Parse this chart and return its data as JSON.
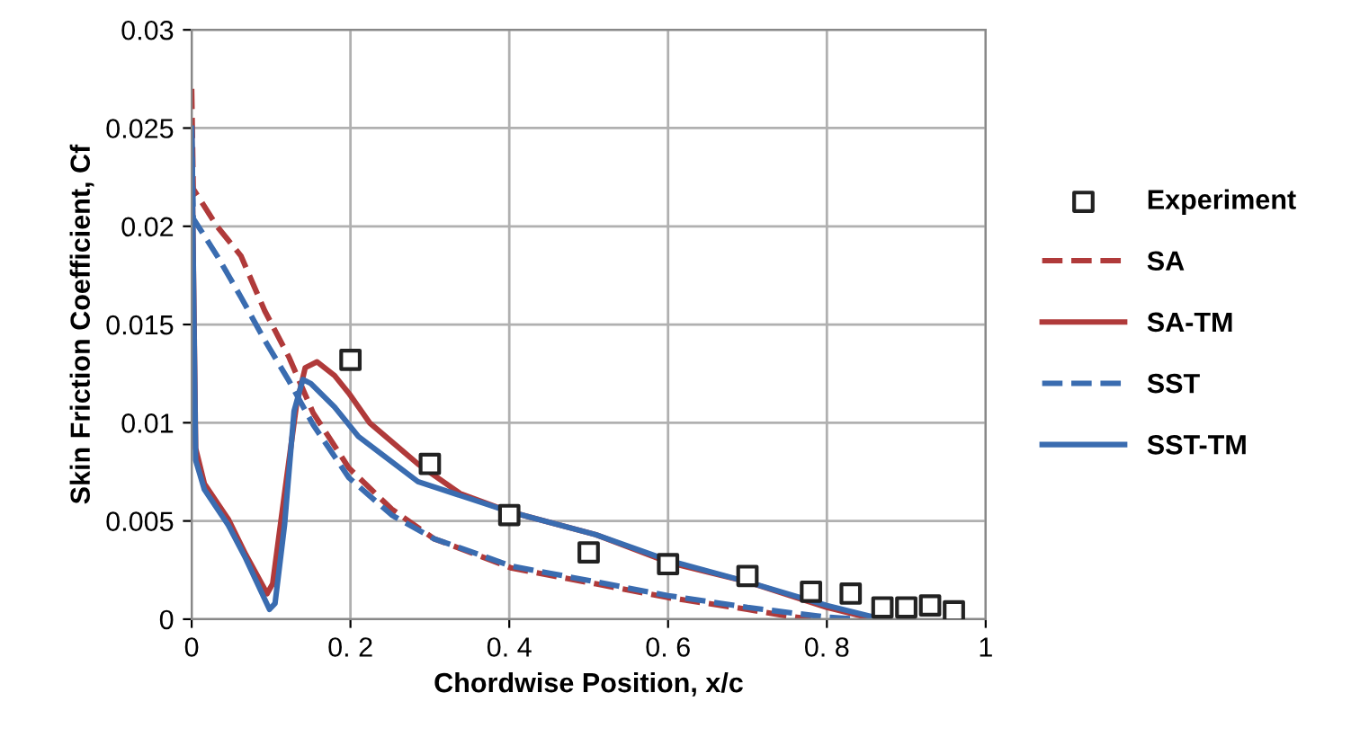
{
  "chart_data": {
    "type": "line",
    "xlabel": "Chordwise Position, x/c",
    "ylabel": "Skin Friction Coefficient, Cf",
    "xlim": [
      0,
      1
    ],
    "ylim": [
      0,
      0.03
    ],
    "xticks": [
      0,
      {
        "value": 0.2,
        "label": "0. 2"
      },
      {
        "value": 0.4,
        "label": "0. 4"
      },
      {
        "value": 0.6,
        "label": "0. 6"
      },
      {
        "value": 0.8,
        "label": "0. 8"
      },
      1
    ],
    "yticks": [
      0,
      0.005,
      0.01,
      0.015,
      0.02,
      0.025,
      0.03
    ],
    "grid": true,
    "legend": "right",
    "series": [
      {
        "name": "Experiment",
        "type": "scatter",
        "marker": "square",
        "color": "#222222",
        "x": [
          0.2,
          0.3,
          0.4,
          0.5,
          0.6,
          0.7,
          0.78,
          0.83,
          0.87,
          0.9,
          0.93,
          0.96
        ],
        "values": [
          0.0132,
          0.0079,
          0.0053,
          0.0034,
          0.0028,
          0.0022,
          0.0014,
          0.0013,
          0.0006,
          0.0006,
          0.0007,
          0.0004
        ]
      },
      {
        "name": "SA",
        "line_style": "dashed",
        "color": "#b03a3a",
        "x": [
          0,
          0.002,
          0.032,
          0.062,
          0.092,
          0.123,
          0.153,
          0.198,
          0.252,
          0.305,
          0.403,
          0.509,
          0.6,
          0.7,
          0.744,
          0.78
        ],
        "values": [
          0.027,
          0.0219,
          0.02,
          0.0185,
          0.0157,
          0.0133,
          0.0105,
          0.0077,
          0.0056,
          0.0041,
          0.0026,
          0.0018,
          0.0011,
          0.0005,
          0.0002,
          0
        ]
      },
      {
        "name": "SA-TM",
        "line_style": "solid",
        "color": "#b03a3a",
        "x": [
          0,
          0.005,
          0.016,
          0.046,
          0.068,
          0.095,
          0.102,
          0.117,
          0.132,
          0.143,
          0.158,
          0.18,
          0.198,
          0.224,
          0.285,
          0.338,
          0.398,
          0.509,
          0.6,
          0.7,
          0.8,
          0.86
        ],
        "values": [
          0.025,
          0.0087,
          0.0069,
          0.0051,
          0.0033,
          0.0013,
          0.0018,
          0.0064,
          0.0109,
          0.0128,
          0.0131,
          0.0124,
          0.0115,
          0.01,
          0.0079,
          0.0064,
          0.0055,
          0.0043,
          0.0029,
          0.0019,
          0.0006,
          0
        ]
      },
      {
        "name": "SST",
        "line_style": "dashed",
        "color": "#3a6cb0",
        "x": [
          0,
          0.002,
          0.032,
          0.062,
          0.092,
          0.123,
          0.153,
          0.198,
          0.252,
          0.305,
          0.403,
          0.509,
          0.6,
          0.7,
          0.8,
          0.84
        ],
        "values": [
          0.025,
          0.0204,
          0.0185,
          0.0164,
          0.0142,
          0.0121,
          0.0099,
          0.0072,
          0.0053,
          0.0041,
          0.0027,
          0.0019,
          0.0012,
          0.0006,
          0.0001,
          0
        ]
      },
      {
        "name": "SST-TM",
        "line_style": "solid",
        "color": "#3a6cb0",
        "x": [
          0,
          0.005,
          0.016,
          0.046,
          0.068,
          0.098,
          0.105,
          0.117,
          0.129,
          0.14,
          0.15,
          0.18,
          0.21,
          0.285,
          0.398,
          0.509,
          0.6,
          0.7,
          0.8,
          0.87
        ],
        "values": [
          0.025,
          0.0081,
          0.0066,
          0.0048,
          0.0031,
          0.0005,
          0.0008,
          0.0048,
          0.0106,
          0.0122,
          0.012,
          0.0108,
          0.0093,
          0.007,
          0.0055,
          0.0043,
          0.003,
          0.0019,
          0.0007,
          0
        ]
      }
    ]
  }
}
